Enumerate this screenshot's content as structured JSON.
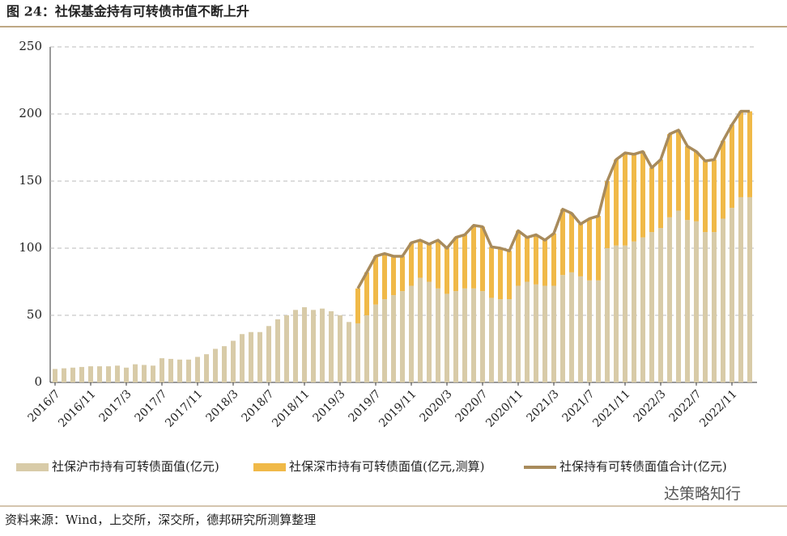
{
  "chart_data": {
    "type": "bar-line",
    "title": "图 24：社保基金持有可转债市值不断上升",
    "source": "资料来源：Wind，上交所，深交所，德邦研究所测算整理",
    "watermark": "达策略知行",
    "categories": [
      "2016/7",
      null,
      null,
      null,
      "2016/11",
      null,
      null,
      null,
      "2017/3",
      null,
      null,
      null,
      "2017/7",
      null,
      null,
      null,
      "2017/11",
      null,
      null,
      null,
      "2018/3",
      null,
      null,
      null,
      "2018/7",
      null,
      null,
      null,
      "2018/11",
      null,
      null,
      null,
      "2019/3",
      null,
      null,
      null,
      "2019/7",
      null,
      null,
      null,
      "2019/11",
      null,
      null,
      null,
      "2020/3",
      null,
      null,
      null,
      "2020/7",
      null,
      null,
      null,
      "2020/11",
      null,
      null,
      null,
      "2021/3",
      null,
      null,
      null,
      "2021/7",
      null,
      null,
      null,
      "2021/11",
      null,
      null,
      null,
      "2022/3",
      null,
      null,
      null,
      "2022/7",
      null,
      null,
      null,
      "2022/11",
      null,
      null
    ],
    "series": [
      {
        "name": "社保沪市持有可转债面值(亿元)",
        "color": "#d8cba8",
        "kind": "bar",
        "values": [
          10,
          10.5,
          11,
          11.5,
          12,
          12,
          12,
          12.5,
          11,
          13.5,
          13,
          12.5,
          18,
          17.5,
          17,
          17,
          19,
          21,
          25,
          27,
          31,
          36,
          37.5,
          37.5,
          42,
          47,
          50,
          54,
          56,
          54,
          55,
          53,
          50,
          45,
          44,
          50,
          58,
          62,
          65,
          68,
          72,
          78,
          75,
          70,
          66,
          68,
          70,
          70,
          68,
          63,
          62,
          62,
          72,
          75,
          73,
          72,
          72,
          80,
          82,
          79,
          76,
          76,
          100,
          102,
          102,
          105,
          108,
          112,
          115,
          123,
          128,
          121,
          120,
          112,
          112,
          122,
          130,
          138,
          138
        ]
      },
      {
        "name": "社保深市持有可转债面值(亿元,测算)",
        "color": "#f0b948",
        "kind": "bar",
        "values": [
          null,
          null,
          null,
          null,
          null,
          null,
          null,
          null,
          null,
          null,
          null,
          null,
          null,
          null,
          null,
          null,
          null,
          null,
          null,
          null,
          null,
          null,
          null,
          null,
          null,
          null,
          null,
          null,
          null,
          null,
          null,
          null,
          null,
          null,
          26,
          32,
          36,
          34,
          29,
          26,
          32,
          28,
          28,
          36,
          34,
          40,
          40,
          47,
          48,
          38,
          38,
          36,
          41,
          33,
          37,
          34,
          39,
          49,
          44,
          39,
          46,
          48,
          50,
          64,
          69,
          65,
          64,
          48,
          51,
          62,
          60,
          55,
          52,
          53,
          54,
          58,
          62,
          64,
          64
        ]
      },
      {
        "name": "社保持有可转债面值合计(亿元)",
        "color": "#a88b5c",
        "kind": "line",
        "values": [
          null,
          null,
          null,
          null,
          null,
          null,
          null,
          null,
          null,
          null,
          null,
          null,
          null,
          null,
          null,
          null,
          null,
          null,
          null,
          null,
          null,
          null,
          null,
          null,
          null,
          null,
          null,
          null,
          null,
          null,
          null,
          null,
          null,
          null,
          70,
          82,
          94,
          96,
          94,
          94,
          104,
          106,
          103,
          106,
          100,
          108,
          110,
          117,
          116,
          101,
          100,
          98,
          113,
          108,
          110,
          106,
          111,
          129,
          126,
          118,
          122,
          124,
          150,
          166,
          171,
          170,
          172,
          160,
          166,
          185,
          188,
          176,
          172,
          165,
          166,
          180,
          192,
          202,
          202
        ]
      }
    ],
    "ylim": [
      0,
      250
    ],
    "yticks": [
      0,
      50,
      100,
      150,
      200,
      250
    ],
    "grid": true
  }
}
